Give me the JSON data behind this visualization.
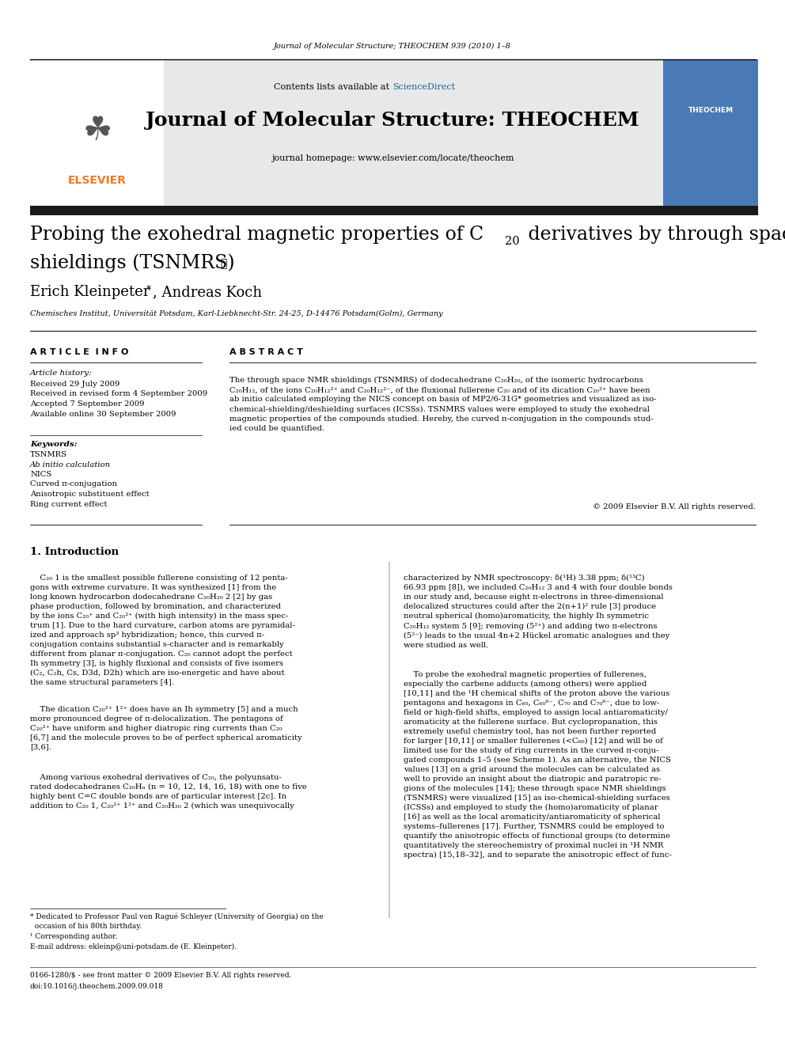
{
  "page_width": 9.92,
  "page_height": 13.23,
  "bg_color": "#ffffff",
  "journal_header_text": "Journal of Molecular Structure; THEOCHEM 939 (2010) 1–8",
  "sciencedirect_color": "#1a6496",
  "journal_name": "Journal of Molecular Structure: THEOCHEM",
  "journal_homepage": "journal homepage: www.elsevier.com/locate/theochem",
  "elsevier_color": "#f47920",
  "header_bg": "#e8e8e8",
  "dark_bar_color": "#1a1a1a",
  "title_star": "☆",
  "affiliation": "Chemisches Institut, Universität Potsdam, Karl-Liebknecht-Str. 24-25, D-14476 Potsdam(Golm), Germany",
  "article_info_title": "A R T I C L E  I N F O",
  "abstract_title": "A B S T R A C T",
  "article_history": [
    "Received 29 July 2009",
    "Received in revised form 4 September 2009",
    "Accepted 7 September 2009",
    "Available online 30 September 2009"
  ],
  "keywords": [
    "TSNMRS",
    "Ab initio calculation",
    "NICS",
    "Curved π-conjugation",
    "Anisotropic substituent effect",
    "Ring current effect"
  ],
  "copyright_text": "© 2009 Elsevier B.V. All rights reserved.",
  "section1_title": "1. Introduction",
  "footnote1": "* Dedicated to Professor Paul von Ragué Schleyer (University of Georgia) on the",
  "footnote1b": "  occasion of his 80th birthday.",
  "footnote2": "¹ Corresponding author.",
  "footnote3": "E-mail address: ekleinp@uni-potsdam.de (E. Kleinpeter).",
  "bottom_text1": "0166-1280/$ - see front matter © 2009 Elsevier B.V. All rights reserved.",
  "bottom_text2": "doi:10.1016/j.theochem.2009.09.018"
}
